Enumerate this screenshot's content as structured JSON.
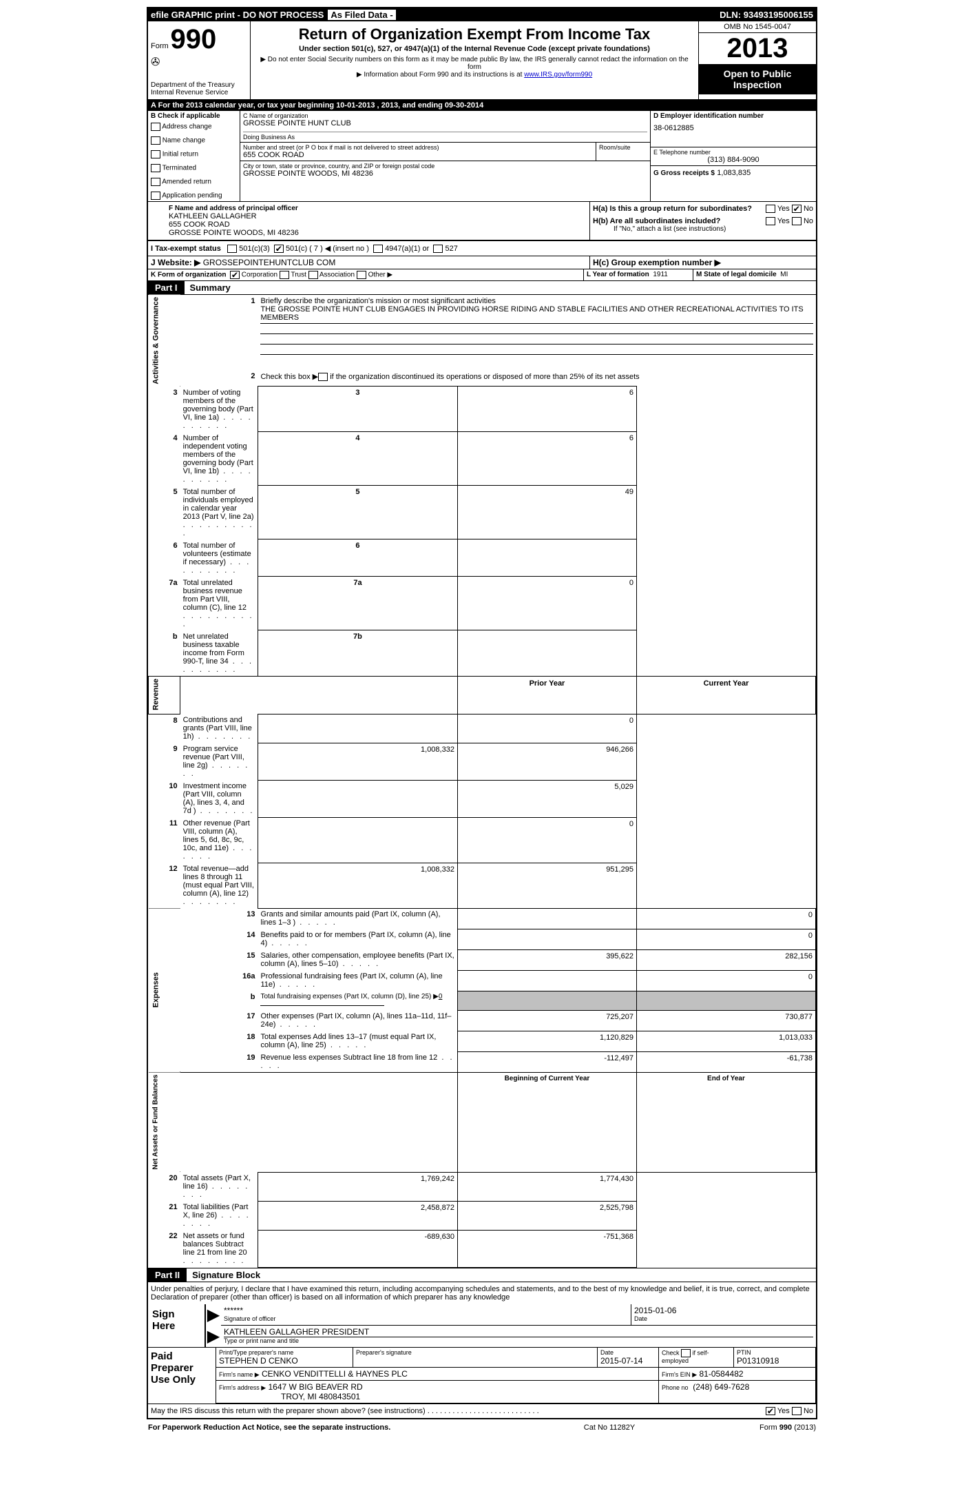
{
  "colors": {
    "black": "#000000",
    "white": "#ffffff",
    "link": "#0000cc",
    "shaded": "#c0c0c0"
  },
  "top": {
    "efile": "efile GRAPHIC print - DO NOT PROCESS",
    "asFiled": "As Filed Data -",
    "dln_label": "DLN:",
    "dln": "93493195006155"
  },
  "header": {
    "form_label": "Form",
    "form_number": "990",
    "dept1": "Department of the Treasury",
    "dept2": "Internal Revenue Service",
    "title": "Return of Organization Exempt From Income Tax",
    "subtitle": "Under section 501(c), 527, or 4947(a)(1) of the Internal Revenue Code (except private foundations)",
    "note1": "▶ Do not enter Social Security numbers on this form as it may be made public  By law, the IRS generally cannot redact the information on the form",
    "note2_pre": "▶ Information about Form 990 and its instructions is at ",
    "note2_link": "www.IRS.gov/form990",
    "omb": "OMB No  1545-0047",
    "year": "2013",
    "open_public": "Open to Public Inspection"
  },
  "rowA": "A  For the 2013 calendar year, or tax year beginning 10-01-2013      , 2013, and ending 09-30-2014",
  "sectionB": {
    "title": "B  Check if applicable",
    "items": [
      "Address change",
      "Name change",
      "Initial return",
      "Terminated",
      "Amended return",
      "Application pending"
    ]
  },
  "sectionC": {
    "name_label": "C Name of organization",
    "name": "GROSSE POINTE HUNT CLUB",
    "dba_label": "Doing Business As",
    "dba": "",
    "street_label": "Number and street (or P O  box if mail is not delivered to street address)",
    "room_label": "Room/suite",
    "street": "655 COOK ROAD",
    "city_label": "City or town, state or province, country, and ZIP or foreign postal code",
    "city": "GROSSE POINTE WOODS, MI  48236"
  },
  "sectionD": {
    "label": "D Employer identification number",
    "ein": "38-0612885"
  },
  "sectionE": {
    "label": "E Telephone number",
    "phone": "(313) 884-9090"
  },
  "sectionG": {
    "label": "G Gross receipts $",
    "amount": "1,083,835"
  },
  "sectionF": {
    "label": "F  Name and address of principal officer",
    "name": "KATHLEEN GALLAGHER",
    "street": "655 COOK ROAD",
    "city": "GROSSE POINTE WOODS, MI  48236"
  },
  "sectionH": {
    "ha": "H(a)  Is this a group return for subordinates?",
    "hb": "H(b)  Are all subordinates included?",
    "hb_note": "If \"No,\" attach a list  (see instructions)",
    "hc": "H(c)   Group exemption number ▶",
    "yes": "Yes",
    "no": "No"
  },
  "sectionI": {
    "label": "I    Tax-exempt status",
    "opt1": "501(c)(3)",
    "opt2": "501(c) ( 7 ) ◀ (insert no )",
    "opt3": "4947(a)(1) or",
    "opt4": "527"
  },
  "sectionJ": {
    "label": "J   Website: ▶",
    "value": "GROSSEPOINTEHUNTCLUB COM"
  },
  "sectionK": {
    "label": "K Form of organization",
    "opts": [
      "Corporation",
      "Trust",
      "Association",
      "Other ▶"
    ],
    "checked_index": 0
  },
  "sectionL": {
    "label": "L Year of formation",
    "value": "1911"
  },
  "sectionM": {
    "label": "M State of legal domicile",
    "value": "MI"
  },
  "part1": {
    "label": "Part I",
    "title": "Summary",
    "sidebar_ag": "Activities & Governance",
    "sidebar_rev": "Revenue",
    "sidebar_exp": "Expenses",
    "sidebar_net": "Net Assets or Fund Balances",
    "line1_label": "Briefly describe the organization's mission or most significant activities",
    "line1_text": "THE GROSSE POINTE HUNT CLUB ENGAGES IN PROVIDING HORSE RIDING AND STABLE FACILITIES AND OTHER RECREATIONAL ACTIVITIES TO ITS MEMBERS",
    "line2": "Check this box ▶     if the organization discontinued its operations or disposed of more than 25% of its net assets",
    "lines_3_7": [
      {
        "n": "3",
        "t": "Number of voting members of the governing body (Part VI, line 1a)",
        "box": "3",
        "v": "6"
      },
      {
        "n": "4",
        "t": "Number of independent voting members of the governing body (Part VI, line 1b)",
        "box": "4",
        "v": "6"
      },
      {
        "n": "5",
        "t": "Total number of individuals employed in calendar year 2013 (Part V, line 2a)",
        "box": "5",
        "v": "49"
      },
      {
        "n": "6",
        "t": "Total number of volunteers (estimate if necessary)",
        "box": "6",
        "v": ""
      },
      {
        "n": "7a",
        "t": "Total unrelated business revenue from Part VIII, column (C), line 12",
        "box": "7a",
        "v": "0"
      },
      {
        "n": "b",
        "t": "Net unrelated business taxable income from Form 990-T, line 34",
        "box": "7b",
        "v": ""
      }
    ],
    "col_headers": {
      "prior": "Prior Year",
      "current": "Current Year"
    },
    "revenue_lines": [
      {
        "n": "8",
        "t": "Contributions and grants (Part VIII, line 1h)",
        "p": "",
        "c": "0"
      },
      {
        "n": "9",
        "t": "Program service revenue (Part VIII, line 2g)",
        "p": "1,008,332",
        "c": "946,266"
      },
      {
        "n": "10",
        "t": "Investment income (Part VIII, column (A), lines 3, 4, and 7d )",
        "p": "",
        "c": "5,029"
      },
      {
        "n": "11",
        "t": "Other revenue (Part VIII, column (A), lines 5, 6d, 8c, 9c, 10c, and 11e)",
        "p": "",
        "c": "0"
      },
      {
        "n": "12",
        "t": "Total revenue—add lines 8 through 11 (must equal Part VIII, column (A), line 12)",
        "p": "1,008,332",
        "c": "951,295"
      }
    ],
    "expense_lines": [
      {
        "n": "13",
        "t": "Grants and similar amounts paid (Part IX, column (A), lines 1–3 )",
        "p": "",
        "c": "0"
      },
      {
        "n": "14",
        "t": "Benefits paid to or for members (Part IX, column (A), line 4)",
        "p": "",
        "c": "0"
      },
      {
        "n": "15",
        "t": "Salaries, other compensation, employee benefits (Part IX, column (A), lines 5–10)",
        "p": "395,622",
        "c": "282,156"
      },
      {
        "n": "16a",
        "t": "Professional fundraising fees (Part IX, column (A), line 11e)",
        "p": "",
        "c": "0"
      },
      {
        "n": "b",
        "t": "Total fundraising expenses (Part IX, column (D), line 25) ▶",
        "p": null,
        "c": null,
        "special": "0"
      },
      {
        "n": "17",
        "t": "Other expenses (Part IX, column (A), lines 11a–11d, 11f–24e)",
        "p": "725,207",
        "c": "730,877"
      },
      {
        "n": "18",
        "t": "Total expenses  Add lines 13–17 (must equal Part IX, column (A), line 25)",
        "p": "1,120,829",
        "c": "1,013,033"
      },
      {
        "n": "19",
        "t": "Revenue less expenses  Subtract line 18 from line 12",
        "p": "-112,497",
        "c": "-61,738"
      }
    ],
    "net_headers": {
      "begin": "Beginning of Current Year",
      "end": "End of Year"
    },
    "net_lines": [
      {
        "n": "20",
        "t": "Total assets (Part X, line 16)",
        "p": "1,769,242",
        "c": "1,774,430"
      },
      {
        "n": "21",
        "t": "Total liabilities (Part X, line 26)",
        "p": "2,458,872",
        "c": "2,525,798"
      },
      {
        "n": "22",
        "t": "Net assets or fund balances  Subtract line 21 from line 20",
        "p": "-689,630",
        "c": "-751,368"
      }
    ]
  },
  "part2": {
    "label": "Part II",
    "title": "Signature Block",
    "perjury": "Under penalties of perjury, I declare that I have examined this return, including accompanying schedules and statements, and to the best of my knowledge and belief, it is true, correct, and complete  Declaration of preparer (other than officer) is based on all information of which preparer has any knowledge",
    "sign_here": "Sign Here",
    "sig_stars": "******",
    "sig_date": "2015-01-06",
    "sig_label1": "Signature of officer",
    "sig_label2": "Date",
    "officer_name": "KATHLEEN GALLAGHER PRESIDENT",
    "officer_label": "Type or print name and title",
    "paid_prep": "Paid Preparer Use Only",
    "prep_name_label": "Print/Type preparer's name",
    "prep_name": "STEPHEN D CENKO",
    "prep_sig_label": "Preparer's signature",
    "prep_date_label": "Date",
    "prep_date": "2015-07-14",
    "self_emp": "Check        if self-employed",
    "ptin_label": "PTIN",
    "ptin": "P01310918",
    "firm_name_label": "Firm's name      ▶",
    "firm_name": "CENKO VENDITTELLI & HAYNES PLC",
    "firm_ein_label": "Firm's EIN ▶",
    "firm_ein": "81-0584482",
    "firm_addr_label": "Firm's address ▶",
    "firm_addr1": "1647 W BIG BEAVER RD",
    "firm_addr2": "TROY, MI  480843501",
    "firm_phone_label": "Phone no",
    "firm_phone": "(248) 649-7628",
    "discuss": "May the IRS discuss this return with the preparer shown above? (see instructions)"
  },
  "footer": {
    "left": "For Paperwork Reduction Act Notice, see the separate instructions.",
    "mid": "Cat  No  11282Y",
    "right": "Form 990 (2013)"
  }
}
